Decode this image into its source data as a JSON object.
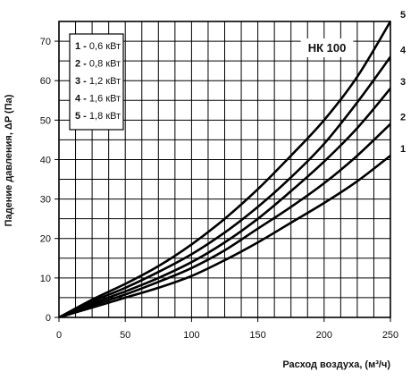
{
  "chart_data": {
    "type": "line",
    "title": "",
    "model_label": "НК  100",
    "xlabel": "Расход воздуха, (м³/ч)",
    "ylabel": "Падение давления, ΔP (Па)",
    "xlim": [
      0,
      250
    ],
    "ylim": [
      0,
      75
    ],
    "x_ticks": [
      0,
      50,
      100,
      150,
      200,
      250
    ],
    "y_ticks": [
      0,
      10,
      20,
      30,
      40,
      50,
      60,
      70
    ],
    "grid": true,
    "legend_position": "top-left",
    "series": [
      {
        "name": "0,6 кВт",
        "id": "1",
        "x": [
          0,
          25,
          50,
          75,
          100,
          125,
          150,
          175,
          200,
          225,
          250
        ],
        "y": [
          0,
          2.5,
          5,
          7.5,
          10.5,
          14.5,
          19,
          24,
          29,
          34.5,
          41
        ]
      },
      {
        "name": "0,8 кВт",
        "id": "2",
        "x": [
          0,
          25,
          50,
          75,
          100,
          125,
          150,
          175,
          200,
          225,
          250
        ],
        "y": [
          0,
          3,
          5.8,
          9,
          12.5,
          17,
          22.5,
          28,
          34,
          41,
          49
        ]
      },
      {
        "name": "1,2 кВт",
        "id": "3",
        "x": [
          0,
          25,
          50,
          75,
          100,
          125,
          150,
          175,
          200,
          225,
          250
        ],
        "y": [
          0,
          3.5,
          6.6,
          10,
          14,
          19,
          25,
          32,
          39.5,
          48,
          58
        ]
      },
      {
        "name": "1,6 кВт",
        "id": "4",
        "x": [
          0,
          25,
          50,
          75,
          100,
          125,
          150,
          175,
          200,
          225,
          250
        ],
        "y": [
          0,
          4,
          7.5,
          11.5,
          16,
          21.5,
          28,
          35.5,
          44,
          54.5,
          66
        ]
      },
      {
        "name": "1,8 кВт",
        "id": "5",
        "x": [
          0,
          25,
          50,
          75,
          100,
          125,
          150,
          175,
          200,
          225,
          250
        ],
        "y": [
          0,
          4.5,
          8.5,
          13,
          18.5,
          25,
          32.5,
          41,
          50,
          61,
          75
        ]
      }
    ]
  }
}
